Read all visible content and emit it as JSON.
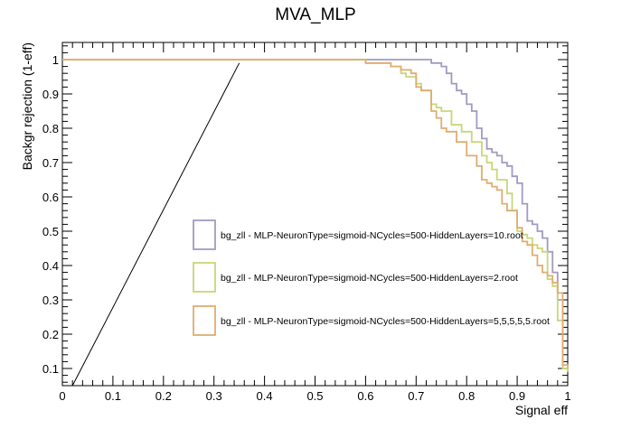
{
  "chart_data": {
    "type": "line",
    "title": "MVA_MLP",
    "xlabel": "Signal eff",
    "ylabel": "Backgr rejection (1-eff)",
    "xlim": [
      0,
      1
    ],
    "ylim": [
      0.05,
      1.05
    ],
    "grid": false,
    "legend_position": "center-right",
    "x_ticks": [
      "0",
      "0.1",
      "0.2",
      "0.3",
      "0.4",
      "0.5",
      "0.6",
      "0.7",
      "0.8",
      "0.9",
      "1"
    ],
    "y_ticks": [
      "0.1",
      "0.2",
      "0.3",
      "0.4",
      "0.5",
      "0.6",
      "0.7",
      "0.8",
      "0.9",
      "1"
    ],
    "reference_line": {
      "x": [
        0.02,
        0.35
      ],
      "y": [
        0.05,
        0.99
      ],
      "color": "#000000"
    },
    "series": [
      {
        "name": "bg_zll - MLP-NeuronType=sigmoid-NCycles=500-HiddenLayers=10.root",
        "color": "#a39ac3",
        "x": [
          0.0,
          0.72,
          0.73,
          0.75,
          0.76,
          0.77,
          0.78,
          0.79,
          0.8,
          0.81,
          0.82,
          0.83,
          0.84,
          0.85,
          0.86,
          0.87,
          0.88,
          0.89,
          0.9,
          0.91,
          0.92,
          0.93,
          0.94,
          0.95,
          0.96,
          0.97,
          0.98,
          0.99,
          1.0
        ],
        "y": [
          1.0,
          1.0,
          0.99,
          0.98,
          0.96,
          0.93,
          0.91,
          0.9,
          0.87,
          0.85,
          0.8,
          0.77,
          0.74,
          0.73,
          0.72,
          0.7,
          0.69,
          0.66,
          0.64,
          0.58,
          0.53,
          0.52,
          0.5,
          0.48,
          0.44,
          0.38,
          0.3,
          0.1,
          0.09
        ]
      },
      {
        "name": "bg_zll - MLP-NeuronType=sigmoid-NCycles=500-HiddenLayers=2.root",
        "color": "#c9d67a",
        "x": [
          0.0,
          0.6,
          0.63,
          0.65,
          0.67,
          0.68,
          0.7,
          0.71,
          0.73,
          0.74,
          0.75,
          0.77,
          0.79,
          0.81,
          0.83,
          0.84,
          0.85,
          0.86,
          0.88,
          0.89,
          0.9,
          0.91,
          0.92,
          0.93,
          0.94,
          0.95,
          0.96,
          0.97,
          0.98,
          0.99,
          1.0
        ],
        "y": [
          1.0,
          0.99,
          0.99,
          0.98,
          0.96,
          0.95,
          0.93,
          0.91,
          0.87,
          0.86,
          0.85,
          0.81,
          0.79,
          0.76,
          0.72,
          0.7,
          0.68,
          0.65,
          0.61,
          0.56,
          0.5,
          0.49,
          0.48,
          0.46,
          0.45,
          0.44,
          0.36,
          0.34,
          0.24,
          0.1,
          0.09
        ]
      },
      {
        "name": "bg_zll - MLP-NeuronType=sigmoid-NCycles=500-HiddenLayers=5,5,5,5,5.root",
        "color": "#dfad70",
        "x": [
          0.0,
          0.6,
          0.63,
          0.65,
          0.67,
          0.69,
          0.7,
          0.71,
          0.73,
          0.74,
          0.75,
          0.76,
          0.78,
          0.8,
          0.82,
          0.83,
          0.84,
          0.85,
          0.86,
          0.87,
          0.88,
          0.9,
          0.91,
          0.92,
          0.93,
          0.94,
          0.95,
          0.96,
          0.97,
          0.98,
          0.99,
          1.0
        ],
        "y": [
          1.0,
          0.99,
          0.99,
          0.98,
          0.97,
          0.96,
          0.92,
          0.91,
          0.85,
          0.83,
          0.8,
          0.79,
          0.76,
          0.72,
          0.69,
          0.65,
          0.64,
          0.63,
          0.62,
          0.58,
          0.56,
          0.51,
          0.47,
          0.46,
          0.43,
          0.4,
          0.38,
          0.37,
          0.35,
          0.32,
          0.11,
          0.1
        ]
      }
    ]
  }
}
